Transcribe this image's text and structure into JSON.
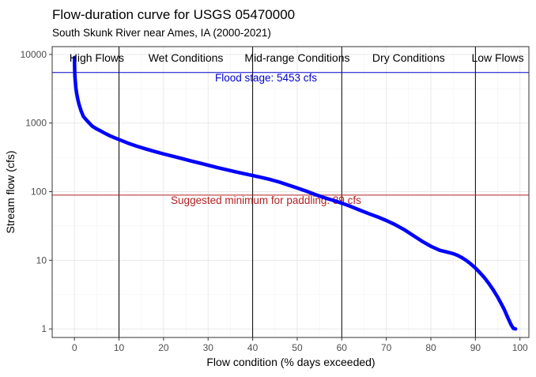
{
  "chart_data": {
    "type": "line",
    "title": "Flow-duration curve for USGS 05470000",
    "subtitle": "South Skunk River near Ames, IA (2000-2021)",
    "xlabel": "Flow condition (% days exceeded)",
    "ylabel": "Stream flow (cfs)",
    "xlim": [
      -5,
      102
    ],
    "ylim": [
      0.75,
      13000
    ],
    "yscale": "log",
    "x_ticks": [
      0,
      10,
      20,
      30,
      40,
      50,
      60,
      70,
      80,
      90,
      100
    ],
    "x_tick_labels": [
      "0",
      "10",
      "20",
      "30",
      "40",
      "50",
      "60",
      "70",
      "80",
      "90",
      "100"
    ],
    "y_ticks": [
      1,
      10,
      100,
      1000,
      10000
    ],
    "y_tick_labels": [
      "1",
      "10",
      "100",
      "1000",
      "10000"
    ],
    "grid": true,
    "zone_boundaries": [
      10,
      40,
      60,
      90
    ],
    "zones": [
      {
        "label": "High Flows",
        "center": 5
      },
      {
        "label": "Wet Conditions",
        "center": 25
      },
      {
        "label": "Mid-range Conditions",
        "center": 50
      },
      {
        "label": "Dry Conditions",
        "center": 75
      },
      {
        "label": "Low Flows",
        "center": 95
      }
    ],
    "reference_lines": [
      {
        "label": "Flood stage: 5453 cfs",
        "value": 5453,
        "color": "#0000cc",
        "label_x": 43
      },
      {
        "label": "Suggested minimum for paddling: 89 cfs",
        "value": 89,
        "color": "#b22222",
        "label_x": 43
      }
    ],
    "series": [
      {
        "color": "#0000ff",
        "x": [
          0,
          0.05,
          0.1,
          0.2,
          0.3,
          0.5,
          0.7,
          1,
          1.5,
          2,
          3,
          4,
          5,
          6,
          7,
          8,
          9,
          10,
          12,
          14,
          16,
          18,
          20,
          22,
          24,
          26,
          28,
          30,
          32,
          34,
          36,
          38,
          40,
          42,
          44,
          46,
          48,
          50,
          52,
          54,
          56,
          58,
          60,
          62,
          64,
          66,
          68,
          70,
          72,
          74,
          76,
          78,
          80,
          82,
          84,
          85,
          86,
          87,
          88,
          89,
          90,
          91,
          92,
          93,
          94,
          95,
          96,
          96.5,
          97,
          97.5,
          98,
          98.5,
          99
        ],
        "values": [
          9000,
          6000,
          4800,
          4000,
          3300,
          2700,
          2300,
          1900,
          1500,
          1250,
          1050,
          900,
          820,
          760,
          700,
          650,
          610,
          575,
          510,
          460,
          420,
          385,
          355,
          330,
          305,
          282,
          262,
          243,
          225,
          210,
          196,
          183,
          172,
          161,
          150,
          138,
          125,
          113,
          102,
          91,
          82,
          75,
          68,
          61,
          54,
          48,
          43,
          38,
          33,
          28,
          23,
          19,
          16,
          14,
          13,
          12.5,
          11.8,
          10.9,
          9.9,
          8.8,
          7.7,
          6.6,
          5.6,
          4.6,
          3.7,
          2.9,
          2.2,
          1.9,
          1.6,
          1.35,
          1.15,
          1.02,
          1.0
        ]
      }
    ]
  }
}
